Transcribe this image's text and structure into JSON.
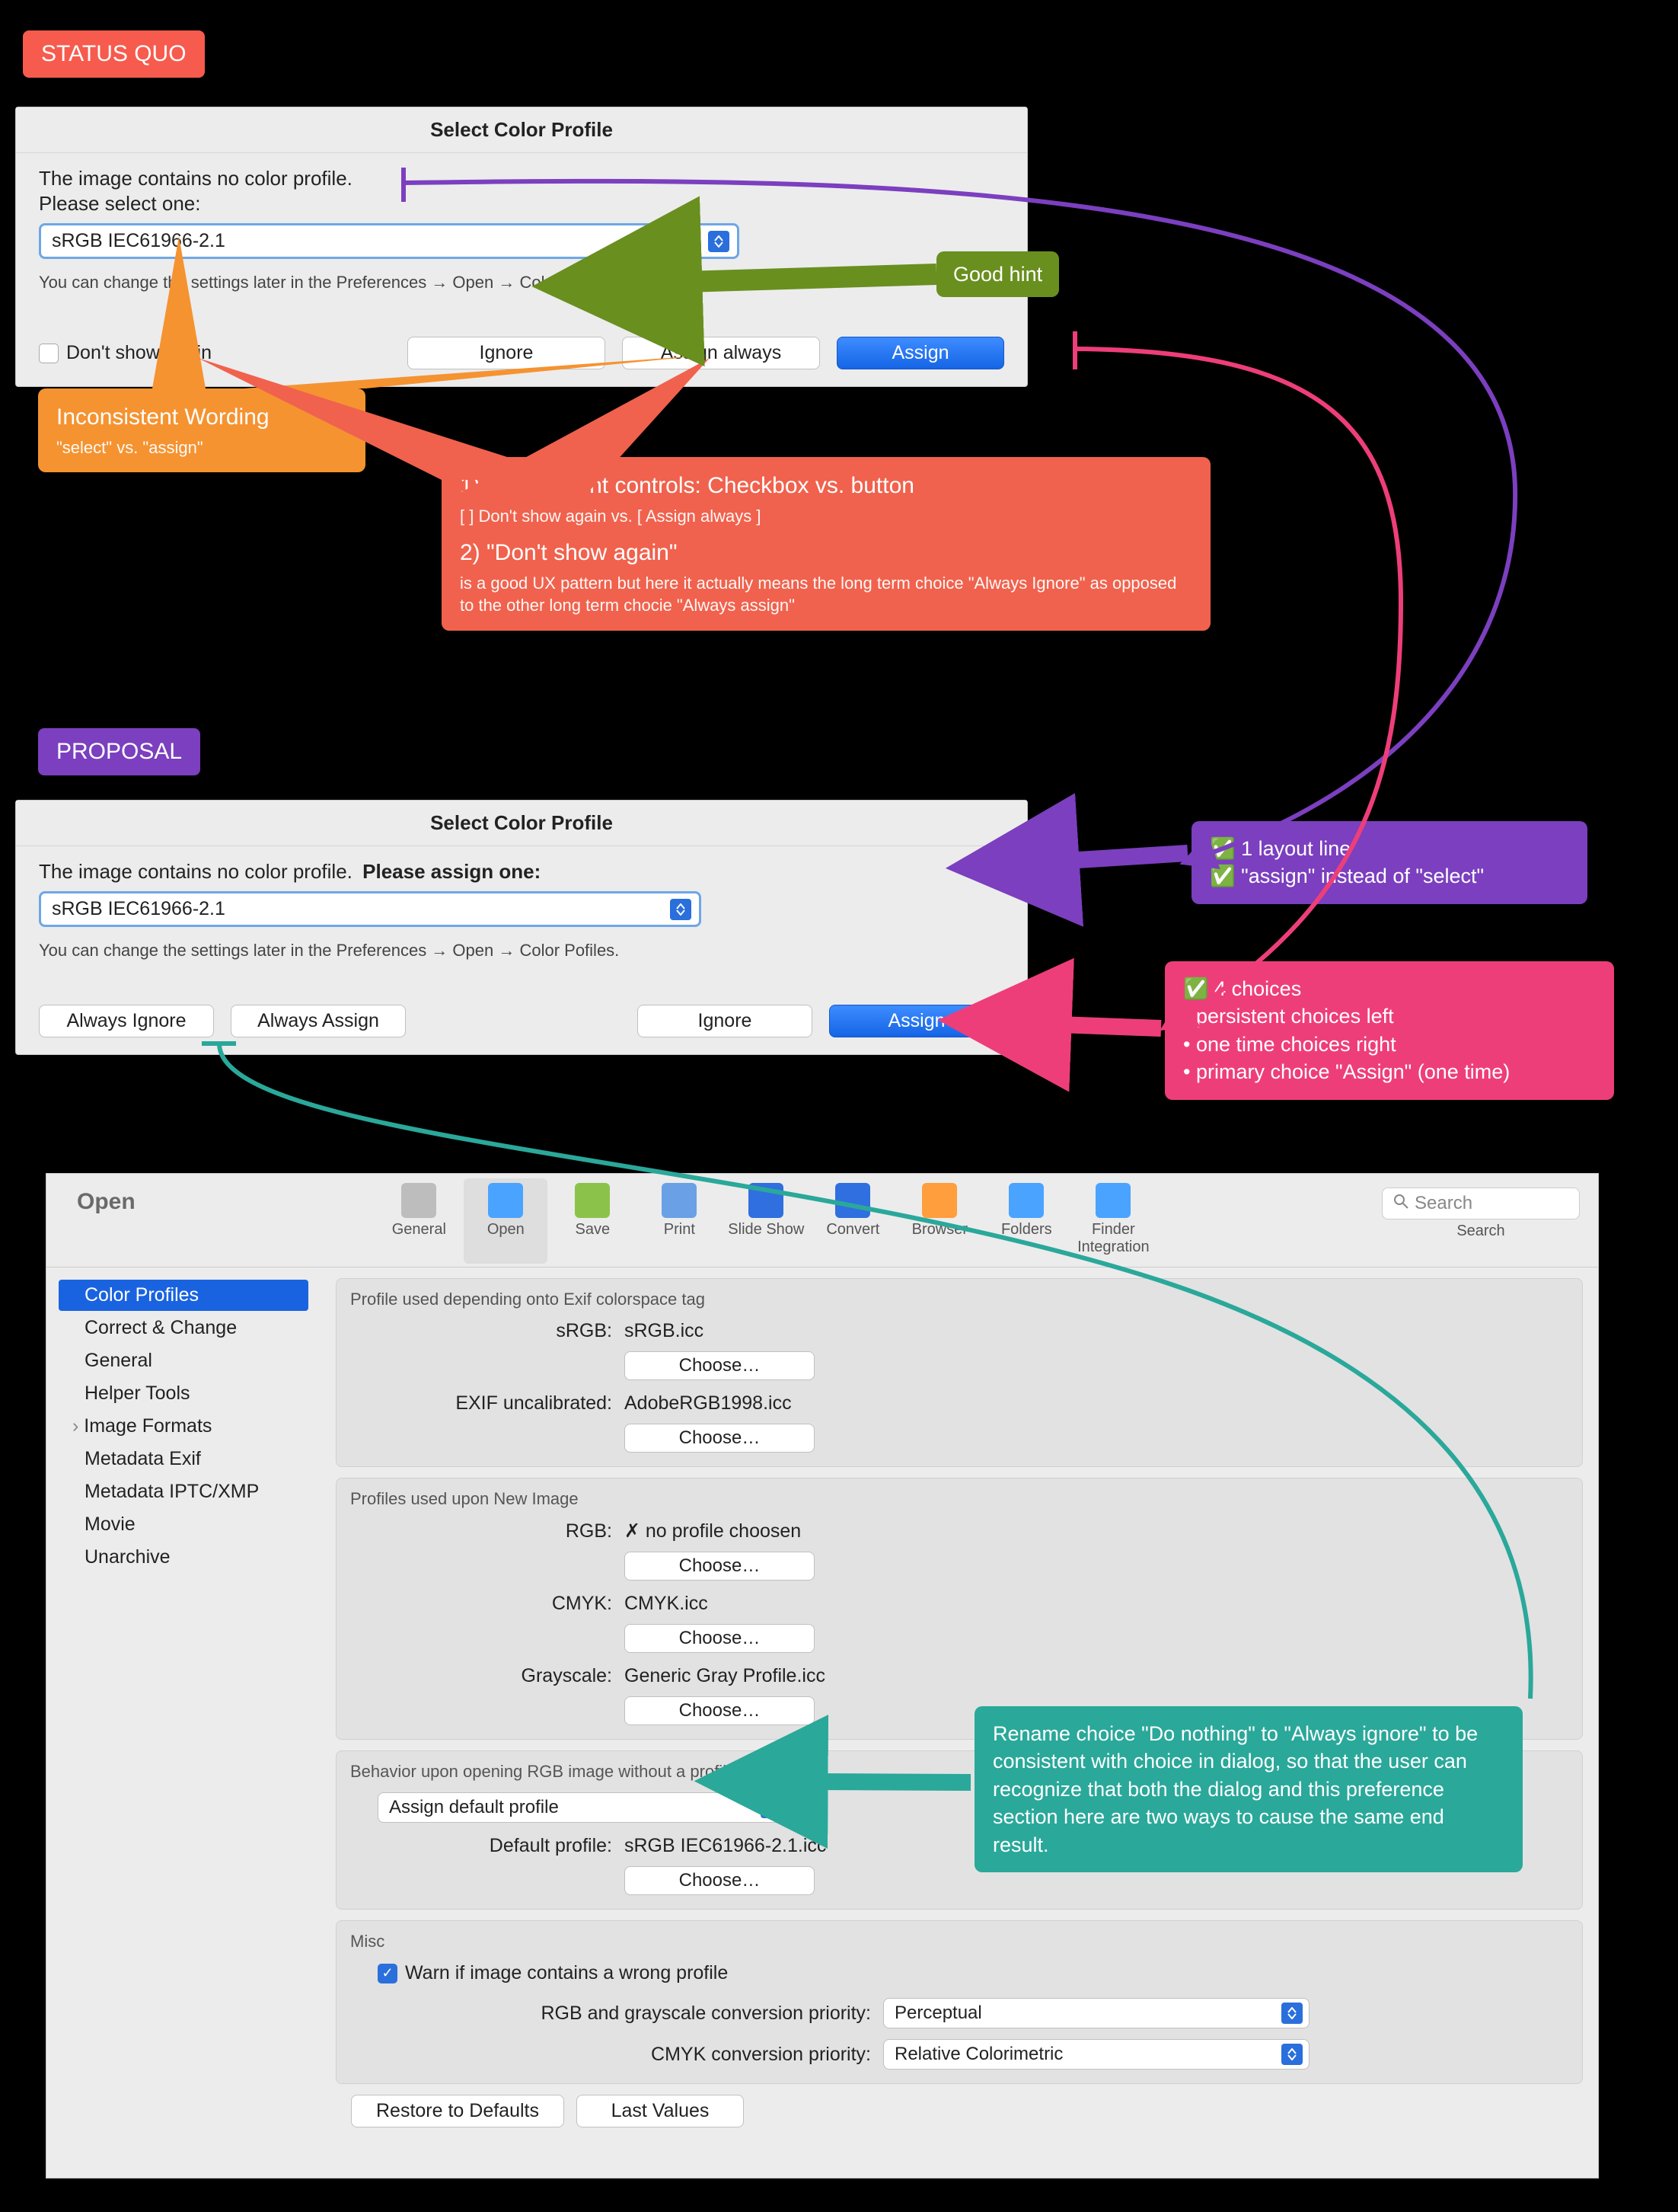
{
  "colors": {
    "tag_statusquo": "#f65b4e",
    "tag_proposal": "#7b3fbf",
    "callout_orange": "#f59331",
    "callout_red": "#f0624d",
    "callout_green": "#698f1f",
    "callout_purple": "#7b3fbf",
    "callout_pink": "#ee3e7a",
    "callout_teal": "#2aa89a",
    "mac_primary": "#1565e6",
    "mac_select_border": "#6ea7e6",
    "prefs_bg": "#ececec",
    "sidebar_sel": "#1a63e0",
    "arrow_orange": "#f59331",
    "arrow_green": "#698f1f",
    "arrow_purple": "#7b3fbf",
    "arrow_pink": "#ee3e7a",
    "arrow_teal": "#2aa89a",
    "arrow_red": "#f0624d"
  },
  "tags": {
    "statusquo": "STATUS QUO",
    "proposal": "PROPOSAL"
  },
  "dialog_sq": {
    "title": "Select Color Profile",
    "line1": "The image contains no color profile.",
    "line2": "Please select one:",
    "select_value": "sRGB IEC61966-2.1",
    "hint": "You can change the settings later in the Preferences → Open → Color Pofiles.",
    "dont_show": "Don't show again",
    "ignore": "Ignore",
    "assign_always": "Assign always",
    "assign": "Assign"
  },
  "dialog_prop": {
    "title": "Select Color Profile",
    "line1": "The image contains no color profile.",
    "line1b": "Please assign one:",
    "select_value": "sRGB IEC61966-2.1",
    "hint": "You can change the settings later in the Preferences → Open → Color Pofiles.",
    "always_ignore": "Always Ignore",
    "always_assign": "Always Assign",
    "ignore": "Ignore",
    "assign": "Assign"
  },
  "callouts": {
    "good_hint": "Good hint",
    "inconsistent_wording_h": "Inconsistent Wording",
    "inconsistent_wording_s": "\"select\" vs. \"assign\"",
    "red_h1": "1) Inconsistent controls: Checkbox vs. button",
    "red_s1": "[ ] Don't show again   vs.   [ Assign always ]",
    "red_h2": "2) \"Don't show again\"",
    "red_s2": "is a good UX pattern but here it actually means the long term choice \"Always Ignore\"  as opposed to the other long term chocie \"Always assign\"",
    "purple_l1": "1 layout line",
    "purple_l2": "\"assign\" instead of \"select\"",
    "pink_l1": "4 choices",
    "pink_l2": "persistent choices left",
    "pink_l3": "one time choices right",
    "pink_l4": "primary choice \"Assign\" (one time)",
    "teal": "Rename choice \"Do nothing\" to \"Always ignore\" to be consistent with choice in dialog, so that the user can recognize that both the dialog and this preference section here are two ways to cause the same end result."
  },
  "prefs": {
    "title": "Open",
    "toolbar": {
      "items": [
        "General",
        "Open",
        "Save",
        "Print",
        "Slide Show",
        "Convert",
        "Browser",
        "Folders",
        "Finder Integration"
      ],
      "selected_index": 1,
      "search_label": "Search",
      "search_placeholder": "Search"
    },
    "sidebar": {
      "items": [
        "Color Profiles",
        "Correct & Change",
        "General",
        "Helper Tools",
        "Image Formats",
        "Metadata Exif",
        "Metadata IPTC/XMP",
        "Movie",
        "Unarchive"
      ],
      "selected_index": 0,
      "disclose_index": 4
    },
    "group1": {
      "title": "Profile used depending onto Exif colorspace tag",
      "srgb_label": "sRGB:",
      "srgb_value": "sRGB.icc",
      "choose": "Choose…",
      "exif_label": "EXIF uncalibrated:",
      "exif_value": "AdobeRGB1998.icc"
    },
    "group2": {
      "title": "Profiles used upon New Image",
      "rgb_label": "RGB:",
      "rgb_value": "✗ no profile choosen",
      "cmyk_label": "CMYK:",
      "cmyk_value": "CMYK.icc",
      "gray_label": "Grayscale:",
      "gray_value": "Generic Gray Profile.icc",
      "choose": "Choose…"
    },
    "group3": {
      "title": "Behavior upon opening RGB image without a profile",
      "select_value": "Assign default profile",
      "default_label": "Default profile:",
      "default_value": "sRGB IEC61966-2.1.icc",
      "choose": "Choose…"
    },
    "group4": {
      "title": "Misc",
      "warn": "Warn if image contains a wrong profile",
      "rgb_prio_label": "RGB and grayscale conversion priority:",
      "rgb_prio_value": "Perceptual",
      "cmyk_prio_label": "CMYK conversion priority:",
      "cmyk_prio_value": "Relative Colorimetric"
    },
    "footer": {
      "restore": "Restore to Defaults",
      "last": "Last Values"
    }
  }
}
